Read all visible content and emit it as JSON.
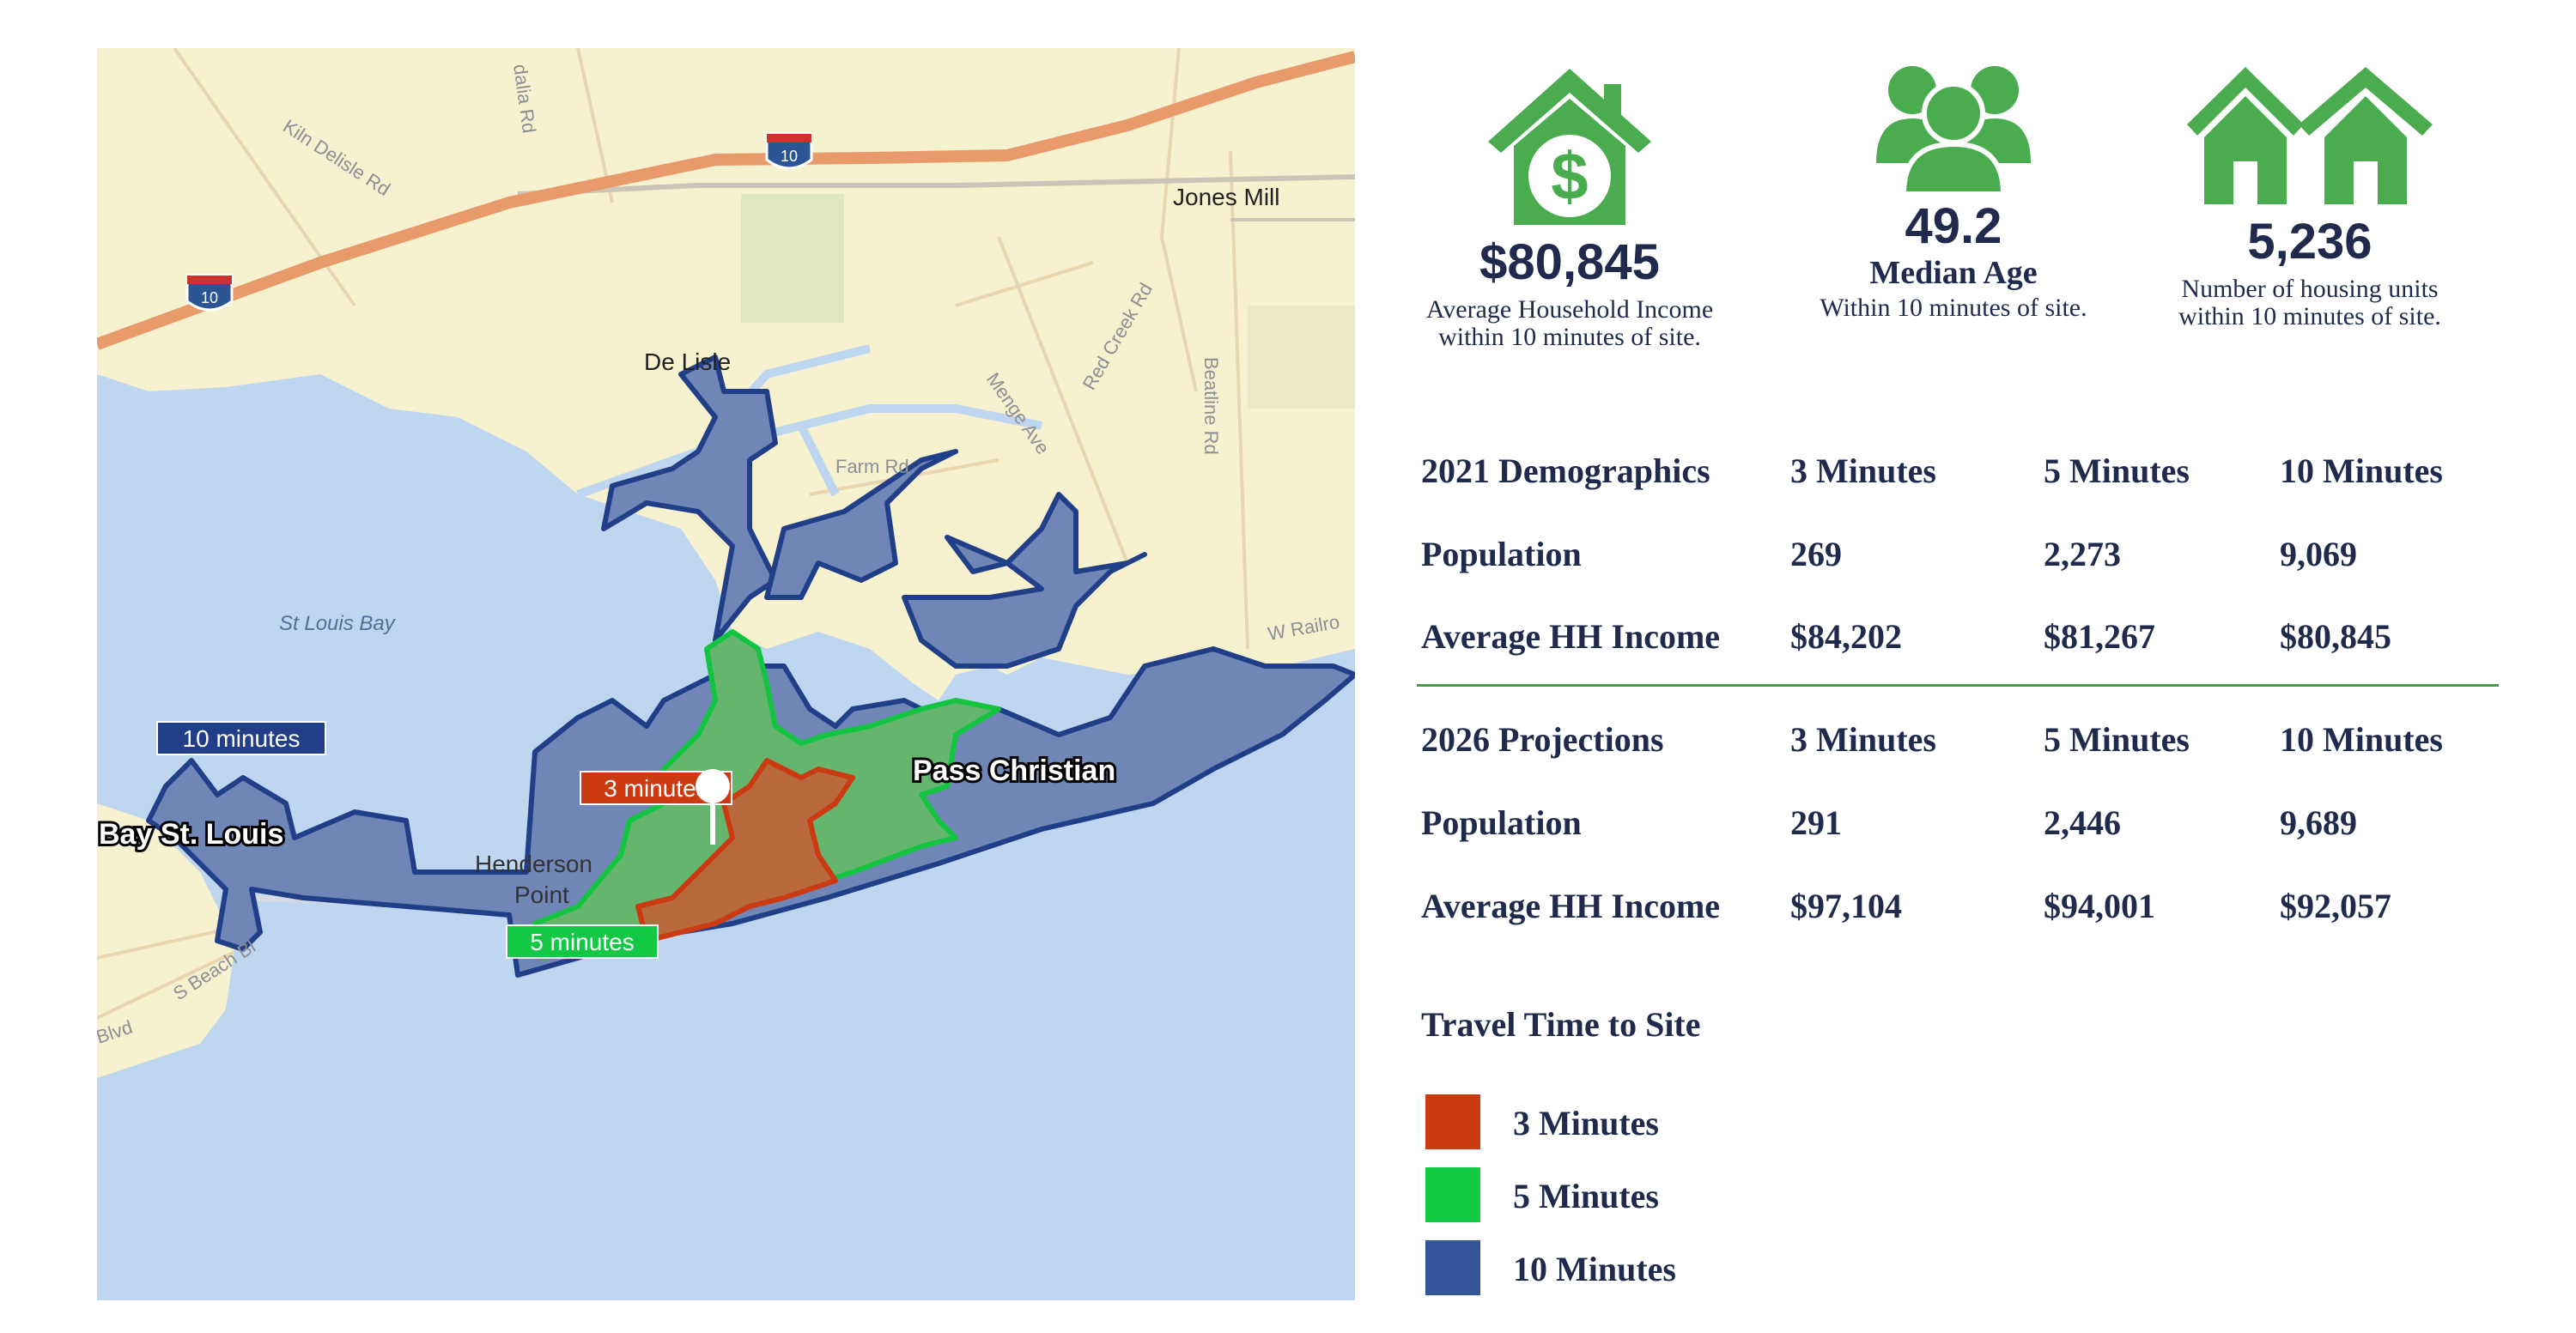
{
  "stats": {
    "income": {
      "icon": "house-dollar-icon",
      "value": "$80,845",
      "line1": "Average Household Income",
      "line2": "within 10 minutes of site."
    },
    "age": {
      "icon": "people-group-icon",
      "value": "49.2",
      "line1": "Median Age",
      "line2": "Within 10 minutes of site."
    },
    "housing": {
      "icon": "houses-icon",
      "value": "5,236",
      "line1": "Number of housing units",
      "line2": "within 10 minutes of site."
    }
  },
  "demographics": {
    "header": [
      "2021 Demographics",
      "3 Minutes",
      "5 Minutes",
      "10 Minutes"
    ],
    "rows": [
      [
        "Population",
        "269",
        "2,273",
        "9,069"
      ],
      [
        "Average HH Income",
        "$84,202",
        "$81,267",
        "$80,845"
      ]
    ]
  },
  "projections": {
    "header": [
      "2026 Projections",
      "3 Minutes",
      "5 Minutes",
      "10 Minutes"
    ],
    "rows": [
      [
        "Population",
        "291",
        "2,446",
        "9,689"
      ],
      [
        "Average HH Income",
        "$97,104",
        "$94,001",
        "$92,057"
      ]
    ]
  },
  "legend": {
    "title": "Travel Time to Site",
    "items": [
      {
        "label": "3 Minutes",
        "color": "#cc3a12"
      },
      {
        "label": "5 Minutes",
        "color": "#13c844"
      },
      {
        "label": "10 Minutes",
        "color": "#34559a"
      }
    ]
  },
  "map": {
    "places": {
      "jones_mill": "Jones Mill",
      "de_lisle": "De Lisle",
      "pass_christian": "Pass Christian",
      "bay_st_louis": "Bay St. Louis",
      "henderson_point_1": "Henderson",
      "henderson_point_2": "Point",
      "st_louis_bay": "St Louis Bay"
    },
    "roads": {
      "kiln_delisle": "Kiln Delisle Rd",
      "idalia": "dalia Rd",
      "menge": "Menge Ave",
      "red_creek": "Red Creek Rd",
      "beatline": "Beatline Rd",
      "farm": "Farm Rd",
      "w_railroad": "W Railro",
      "s_beach": "S Beach Bl",
      "blvd": "Blvd"
    },
    "shields": {
      "i10_a": "10",
      "i10_b": "10"
    },
    "zone_labels": {
      "ten": "10 minutes",
      "five": "5 minutes",
      "three": "3 minutes"
    },
    "colors": {
      "land": "#f6f1cf",
      "water": "#bed6ef",
      "ten": "#34559a",
      "five": "#13c844",
      "three": "#cc3a12"
    }
  }
}
